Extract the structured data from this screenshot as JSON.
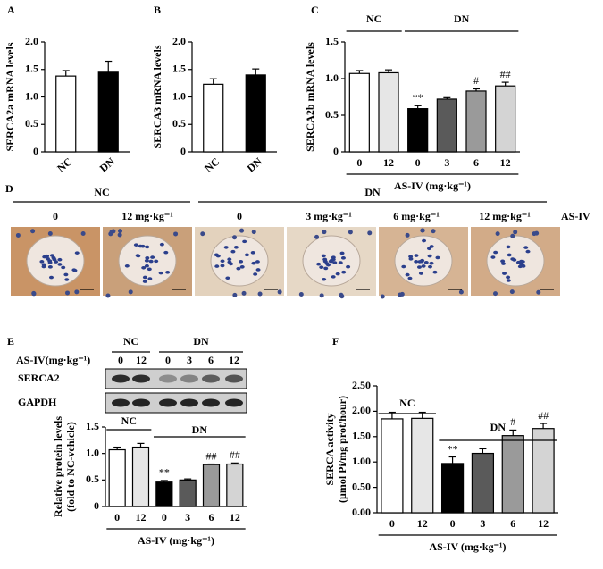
{
  "chart_data": [
    {
      "type": "bar",
      "panel": "A",
      "ylabel": "SERCA2a mRNA levels",
      "categories": [
        "NC",
        "DN"
      ],
      "values": [
        1.38,
        1.45
      ],
      "errors": [
        0.1,
        0.2
      ],
      "colors": [
        "#ffffff",
        "#000000"
      ],
      "ylim": [
        0,
        2
      ],
      "yticks": [
        0,
        0.5,
        {
          "value": 1,
          "label": "1.0"
        },
        1.5,
        {
          "value": 2,
          "label": "2.0"
        }
      ],
      "grid": false
    },
    {
      "type": "bar",
      "panel": "B",
      "ylabel": "SERCA3 mRNA levels",
      "categories": [
        "NC",
        "DN"
      ],
      "values": [
        1.23,
        1.4
      ],
      "errors": [
        0.1,
        0.11
      ],
      "colors": [
        "#ffffff",
        "#000000"
      ],
      "ylim": [
        0,
        2
      ],
      "yticks": [
        0,
        0.5,
        {
          "value": 1,
          "label": "1.0"
        },
        1.5,
        {
          "value": 2,
          "label": "2.0"
        }
      ],
      "grid": false
    },
    {
      "type": "bar",
      "panel": "C",
      "ylabel": "SERCA2b mRNA levels",
      "xlabel": "AS-IV (mg·kg⁻¹)",
      "groups": [
        {
          "name": "NC",
          "categories": [
            "0",
            "12"
          ]
        },
        {
          "name": "DN",
          "categories": [
            "0",
            "3",
            "6",
            "12"
          ]
        }
      ],
      "values": [
        1.07,
        1.08,
        0.59,
        0.72,
        0.83,
        0.9
      ],
      "errors": [
        0.04,
        0.04,
        0.04,
        0.02,
        0.03,
        0.05
      ],
      "annotations": [
        null,
        null,
        "**",
        null,
        "#",
        "##"
      ],
      "colors": [
        "#ffffff",
        "#e6e6e6",
        "#000000",
        "#5a5a5a",
        "#9a9a9a",
        "#d4d4d4"
      ],
      "ylim": [
        0,
        1.5
      ],
      "yticks": [
        0,
        0.5,
        {
          "value": 1,
          "label": "1.0"
        },
        1.5
      ],
      "grid": false
    },
    {
      "type": "bar",
      "panel": "E",
      "ylabel": [
        "Relative protein levels",
        "(fold  to NC-vehicle)"
      ],
      "xlabel": "AS-IV (mg·kg⁻¹)",
      "groups": [
        {
          "name": "NC",
          "categories": [
            "0",
            "12"
          ]
        },
        {
          "name": "DN",
          "categories": [
            "0",
            "3",
            "6",
            "12"
          ]
        }
      ],
      "values": [
        1.07,
        1.12,
        0.46,
        0.5,
        0.79,
        0.8
      ],
      "errors": [
        0.05,
        0.07,
        0.03,
        0.02,
        0.01,
        0.02
      ],
      "annotations": [
        null,
        null,
        "**",
        null,
        "##",
        "##"
      ],
      "colors": [
        "#ffffff",
        "#e6e6e6",
        "#000000",
        "#5a5a5a",
        "#9a9a9a",
        "#d4d4d4"
      ],
      "ylim": [
        0,
        1.5
      ],
      "yticks": [
        0,
        0.5,
        {
          "value": 1,
          "label": "1.0"
        },
        1.5
      ],
      "grid": false,
      "blot": {
        "label": "AS-IV(mg·kg⁻¹)",
        "groups": [
          {
            "name": "NC",
            "categories": [
              "0",
              "12"
            ]
          },
          {
            "name": "DN",
            "categories": [
              "0",
              "3",
              "6",
              "12"
            ]
          }
        ],
        "rows": [
          "SERCA2",
          "GAPDH"
        ]
      }
    },
    {
      "type": "bar",
      "panel": "F",
      "ylabel": [
        "SERCA activity",
        "(μmol Pi/mg prot/hour)"
      ],
      "xlabel": "AS-IV (mg·kg⁻¹)",
      "groups": [
        {
          "name": "NC",
          "categories": [
            "0",
            "12"
          ]
        },
        {
          "name": "DN",
          "categories": [
            "0",
            "3",
            "6",
            "12"
          ]
        }
      ],
      "values": [
        1.85,
        1.86,
        0.97,
        1.17,
        1.52,
        1.66
      ],
      "errors": [
        0.13,
        0.12,
        0.13,
        0.09,
        0.11,
        0.1
      ],
      "annotations": [
        null,
        null,
        "**",
        null,
        "#",
        "##"
      ],
      "colors": [
        "#ffffff",
        "#e6e6e6",
        "#000000",
        "#5a5a5a",
        "#9a9a9a",
        "#d4d4d4"
      ],
      "ylim": [
        0,
        2.5
      ],
      "yticks": [
        {
          "value": 0,
          "label": "0.00"
        },
        {
          "value": 0.5,
          "label": "0.50"
        },
        {
          "value": 1,
          "label": "1.00"
        },
        {
          "value": 1.5,
          "label": "1.50"
        },
        {
          "value": 2,
          "label": "2.00"
        },
        {
          "value": 2.5,
          "label": "2.50"
        }
      ],
      "grid": false
    }
  ],
  "panel_d": {
    "panel": "D",
    "groups": [
      {
        "name": "NC",
        "labels": [
          "0",
          "12 mg·kg⁻¹"
        ]
      },
      {
        "name": "DN",
        "labels": [
          "0",
          "3 mg·kg⁻¹",
          "6 mg·kg⁻¹",
          "12 mg·kg⁻¹"
        ]
      }
    ],
    "label": "AS-IV"
  }
}
